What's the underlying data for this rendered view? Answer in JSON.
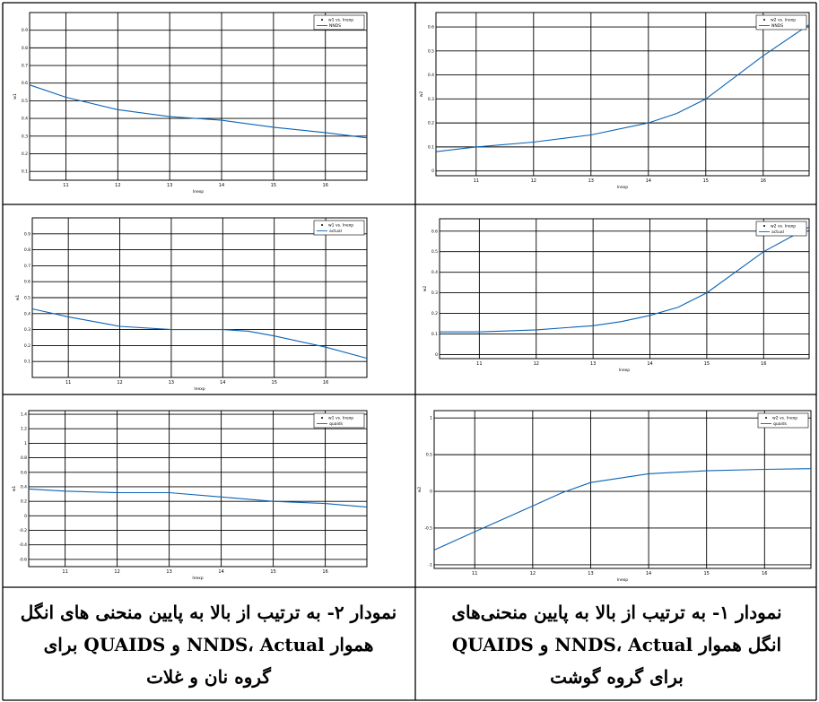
{
  "colors": {
    "line": "#0b63b5",
    "grid": "#000000",
    "border": "#000000"
  },
  "captions": {
    "left": [
      "نمودار ۲- به ترتیب از بالا به پایین منحنی های انگل",
      "هموار NNDS، Actual و QUAIDS برای",
      "گروه نان و غلات"
    ],
    "right": [
      "نمودار ۱- به ترتیب از بالا به پایین منحنی‌های",
      "انگل هموار NNDS، Actual و QUAIDS",
      "برای گروه گوشت"
    ]
  },
  "chart_data": [
    {
      "id": "left-top",
      "type": "line",
      "xlabel": "lnexp",
      "ylabel": "w1",
      "xlim": [
        10.3,
        16.8
      ],
      "ylim": [
        0.05,
        1.0
      ],
      "xticks": [
        11,
        12,
        13,
        14,
        15,
        16
      ],
      "xtick_labels": [
        "11",
        "12",
        "13",
        "14",
        "15",
        "16"
      ],
      "yticks": [
        0.1,
        0.2,
        0.3,
        0.4,
        0.5,
        0.6,
        0.7,
        0.8,
        0.9
      ],
      "ytick_labels": [
        "0.1",
        "0.2",
        "0.3",
        "0.4",
        "0.5",
        "0.6",
        "0.7",
        "0.8",
        "0.9"
      ],
      "legend": [
        "w1 vs. lnexp",
        "NNDS"
      ],
      "series": [
        {
          "name": "NNDS",
          "x": [
            10.3,
            11.0,
            12.0,
            13.0,
            14.0,
            15.0,
            16.0,
            16.8
          ],
          "y": [
            0.59,
            0.52,
            0.45,
            0.41,
            0.39,
            0.35,
            0.32,
            0.29
          ]
        }
      ]
    },
    {
      "id": "right-top",
      "type": "line",
      "xlabel": "lnexp",
      "ylabel": "w2",
      "xlim": [
        10.3,
        16.8
      ],
      "ylim": [
        -0.02,
        0.66
      ],
      "xticks": [
        11,
        12,
        13,
        14,
        15,
        16
      ],
      "xtick_labels": [
        "11",
        "12",
        "13",
        "14",
        "15",
        "16"
      ],
      "yticks": [
        0,
        0.1,
        0.2,
        0.3,
        0.4,
        0.5,
        0.6
      ],
      "ytick_labels": [
        "0",
        "0.1",
        "0.2",
        "0.3",
        "0.4",
        "0.5",
        "0.6"
      ],
      "legend": [
        "w2 vs. lnexp",
        "NNDS"
      ],
      "series": [
        {
          "name": "NNDS",
          "x": [
            10.3,
            11.0,
            12.0,
            13.0,
            14.0,
            14.5,
            15.0,
            16.0,
            16.8
          ],
          "y": [
            0.08,
            0.1,
            0.12,
            0.15,
            0.2,
            0.24,
            0.3,
            0.48,
            0.61
          ]
        }
      ]
    },
    {
      "id": "left-middle",
      "type": "line",
      "xlabel": "lnexp",
      "ylabel": "w1",
      "xlim": [
        10.3,
        16.8
      ],
      "ylim": [
        0.0,
        1.0
      ],
      "xticks": [
        11,
        12,
        13,
        14,
        15,
        16
      ],
      "xtick_labels": [
        "11",
        "12",
        "13",
        "14",
        "15",
        "16"
      ],
      "yticks": [
        0.1,
        0.2,
        0.3,
        0.4,
        0.5,
        0.6,
        0.7,
        0.8,
        0.9
      ],
      "ytick_labels": [
        "0.1",
        "0.2",
        "0.3",
        "0.4",
        "0.5",
        "0.6",
        "0.7",
        "0.8",
        "0.9"
      ],
      "legend": [
        "w1 vs. lnexp",
        "actual"
      ],
      "series": [
        {
          "name": "actual",
          "x": [
            10.3,
            11.0,
            12.0,
            13.0,
            14.0,
            14.5,
            15.0,
            16.0,
            16.8
          ],
          "y": [
            0.43,
            0.38,
            0.32,
            0.3,
            0.3,
            0.29,
            0.26,
            0.19,
            0.12
          ]
        }
      ]
    },
    {
      "id": "right-middle",
      "type": "line",
      "xlabel": "lnexp",
      "ylabel": "w2",
      "xlim": [
        10.3,
        16.8
      ],
      "ylim": [
        -0.02,
        0.66
      ],
      "xticks": [
        11,
        12,
        13,
        14,
        15,
        16
      ],
      "xtick_labels": [
        "11",
        "12",
        "13",
        "14",
        "15",
        "16"
      ],
      "yticks": [
        0,
        0.1,
        0.2,
        0.3,
        0.4,
        0.5,
        0.6
      ],
      "ytick_labels": [
        "0",
        "0.1",
        "0.2",
        "0.3",
        "0.4",
        "0.5",
        "0.6"
      ],
      "legend": [
        "w2 vs. lnexp",
        "actual"
      ],
      "series": [
        {
          "name": "actual",
          "x": [
            10.3,
            11.0,
            12.0,
            13.0,
            13.5,
            14.0,
            14.5,
            15.0,
            16.0,
            16.8
          ],
          "y": [
            0.11,
            0.11,
            0.12,
            0.14,
            0.16,
            0.19,
            0.23,
            0.3,
            0.5,
            0.62
          ]
        }
      ]
    },
    {
      "id": "left-bottom",
      "type": "line",
      "xlabel": "lnexp",
      "ylabel": "w1",
      "xlim": [
        10.3,
        16.8
      ],
      "ylim": [
        -0.7,
        1.45
      ],
      "xticks": [
        11,
        12,
        13,
        14,
        15,
        16
      ],
      "xtick_labels": [
        "11",
        "12",
        "13",
        "14",
        "15",
        "16"
      ],
      "yticks": [
        -0.6,
        -0.4,
        -0.2,
        0,
        0.2,
        0.4,
        0.6,
        0.8,
        1,
        1.2,
        1.4
      ],
      "ytick_labels": [
        "-0.6",
        "-0.4",
        "-0.2",
        "0",
        "0.2",
        "0.4",
        "0.6",
        "0.8",
        "1",
        "1.2",
        "1.4"
      ],
      "legend": [
        "w1 vs. lnexp",
        "quaids"
      ],
      "series": [
        {
          "name": "quaids",
          "x": [
            10.3,
            11.0,
            12.0,
            13.0,
            14.0,
            15.0,
            16.0,
            16.8
          ],
          "y": [
            0.37,
            0.34,
            0.32,
            0.32,
            0.26,
            0.2,
            0.17,
            0.12
          ]
        }
      ]
    },
    {
      "id": "right-bottom",
      "type": "line",
      "xlabel": "lnexp",
      "ylabel": "w2",
      "xlim": [
        10.3,
        16.8
      ],
      "ylim": [
        -1.05,
        1.1
      ],
      "xticks": [
        11,
        12,
        13,
        14,
        15,
        16
      ],
      "xtick_labels": [
        "11",
        "12",
        "13",
        "14",
        "15",
        "16"
      ],
      "yticks": [
        -1,
        -0.5,
        0,
        0.5,
        1
      ],
      "ytick_labels": [
        "-1",
        "-0.5",
        "0",
        "0.5",
        "1"
      ],
      "legend": [
        "w2 vs. lnexp",
        "quaids"
      ],
      "series": [
        {
          "name": "quaids",
          "x": [
            10.3,
            11.0,
            12.0,
            12.5,
            13.0,
            14.0,
            15.0,
            16.0,
            16.8
          ],
          "y": [
            -0.8,
            -0.55,
            -0.2,
            -0.02,
            0.12,
            0.24,
            0.28,
            0.3,
            0.31
          ]
        }
      ]
    }
  ]
}
